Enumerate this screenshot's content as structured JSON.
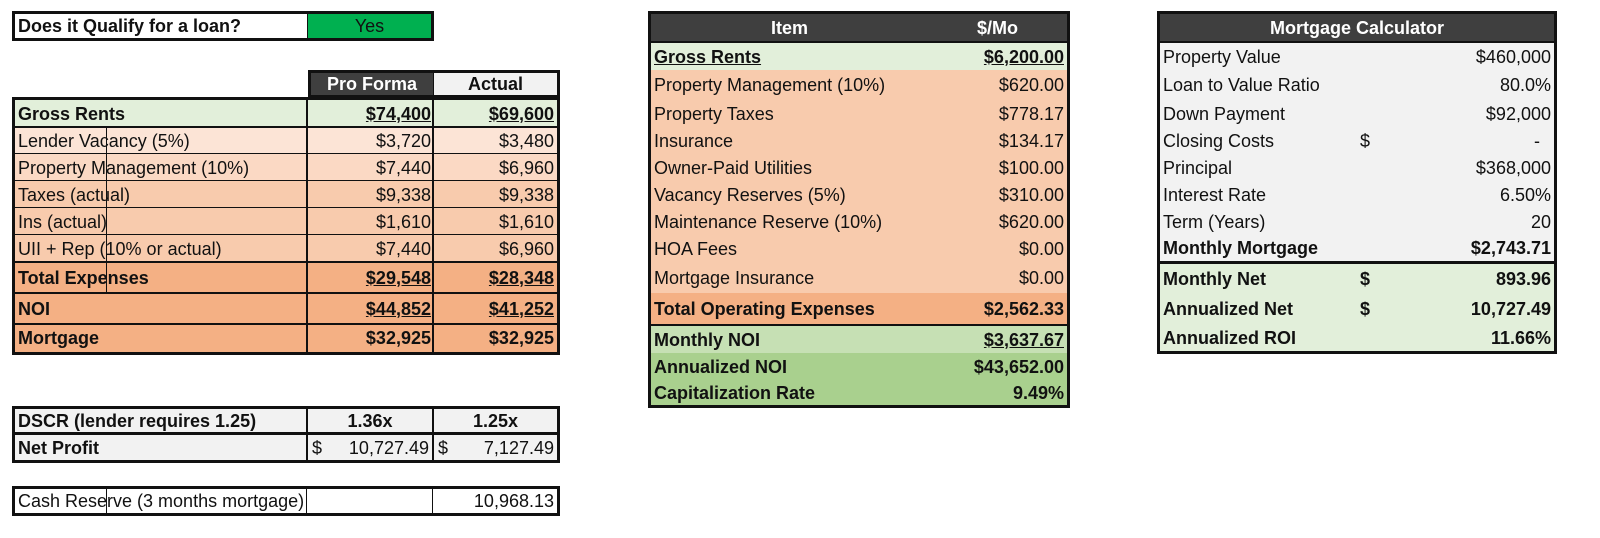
{
  "qualify": {
    "label": "Does it Qualify for a loan?",
    "value": "Yes"
  },
  "proforma": {
    "headers": [
      "Pro Forma",
      "Actual"
    ],
    "rows": [
      {
        "label": "Gross Rents",
        "pro": "$74,400",
        "act": "$69,600"
      },
      {
        "label": "Lender Vacancy (5%)",
        "pro": "$3,720",
        "act": "$3,480"
      },
      {
        "label": "Property Management (10%)",
        "pro": "$7,440",
        "act": "$6,960"
      },
      {
        "label": "Taxes (actual)",
        "pro": "$9,338",
        "act": "$9,338"
      },
      {
        "label": "Ins (actual)",
        "pro": "$1,610",
        "act": "$1,610"
      },
      {
        "label": "UII + Rep (10% or actual)",
        "pro": "$7,440",
        "act": "$6,960"
      },
      {
        "label": "Total Expenses",
        "pro": "$29,548",
        "act": "$28,348"
      },
      {
        "label": "NOI",
        "pro": "$44,852",
        "act": "$41,252"
      },
      {
        "label": "Mortgage",
        "pro": "$32,925",
        "act": "$32,925"
      }
    ]
  },
  "dscr": {
    "label": "DSCR (lender requires 1.25)",
    "pro": "1.36x",
    "act": "1.25x"
  },
  "net_profit": {
    "label": "Net Profit",
    "pro_sym": "$",
    "pro": "10,727.49",
    "act_sym": "$",
    "act": "7,127.49"
  },
  "cash_reserve": {
    "label": "Cash Reserve (3 months mortgage)",
    "value": "10,968.13"
  },
  "items": {
    "headers": [
      "Item",
      "$/Mo"
    ],
    "rows": [
      {
        "label": "Gross Rents",
        "value": "$6,200.00"
      },
      {
        "label": "Property Management (10%)",
        "value": "$620.00"
      },
      {
        "label": "Property Taxes",
        "value": "$778.17"
      },
      {
        "label": "Insurance",
        "value": "$134.17"
      },
      {
        "label": "Owner-Paid Utilities",
        "value": "$100.00"
      },
      {
        "label": "Vacancy Reserves (5%)",
        "value": "$310.00"
      },
      {
        "label": "Maintenance Reserve (10%)",
        "value": "$620.00"
      },
      {
        "label": "HOA Fees",
        "value": "$0.00"
      },
      {
        "label": "Mortgage Insurance",
        "value": "$0.00"
      },
      {
        "label": "Total Operating Expenses",
        "value": "$2,562.33"
      },
      {
        "label": "Monthly NOI",
        "value": "$3,637.67"
      },
      {
        "label": "Annualized NOI",
        "value": "$43,652.00"
      },
      {
        "label": "Capitalization Rate",
        "value": "9.49%"
      }
    ]
  },
  "mortgage": {
    "title": "Mortgage Calculator",
    "rows": [
      {
        "label": "Property Value",
        "sym": "",
        "value": "$460,000"
      },
      {
        "label": "Loan to Value Ratio",
        "sym": "",
        "value": "80.0%"
      },
      {
        "label": "Down Payment",
        "sym": "",
        "value": "$92,000"
      },
      {
        "label": "Closing Costs",
        "sym": "$",
        "value": "-"
      },
      {
        "label": "Principal",
        "sym": "",
        "value": "$368,000"
      },
      {
        "label": "Interest Rate",
        "sym": "",
        "value": "6.50%"
      },
      {
        "label": "Term (Years)",
        "sym": "",
        "value": "20"
      },
      {
        "label": "Monthly Mortgage",
        "sym": "",
        "value": "$2,743.71"
      },
      {
        "label": "Monthly Net",
        "sym": "$",
        "value": "893.96"
      },
      {
        "label": "Annualized Net",
        "sym": "$",
        "value": "10,727.49"
      },
      {
        "label": "Annualized ROI",
        "sym": "",
        "value": "11.66%"
      }
    ]
  },
  "colors": {
    "header_dark": "#3f3f3f",
    "green_light": "#e2efda",
    "green_mid": "#c6e0b4",
    "green_strong": "#a9d08e",
    "yes_green": "#00b050",
    "peach_1": "#fce4d6",
    "peach_2": "#f8cbad",
    "peach_3": "#f4b084",
    "gray_light": "#f2f2f2"
  }
}
